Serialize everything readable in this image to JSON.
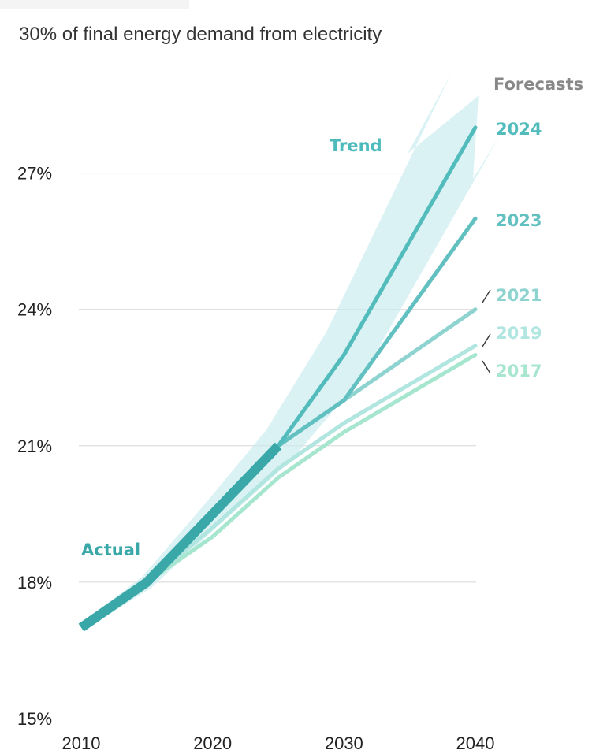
{
  "chart_data": {
    "type": "line",
    "title": "30% of final energy demand from electricity",
    "xlabel": "",
    "ylabel": "",
    "xlim": [
      2010,
      2040
    ],
    "ylim": [
      15,
      30
    ],
    "x_ticks": [
      "2010",
      "2020",
      "2030",
      "2040"
    ],
    "y_ticks": [
      "15%",
      "18%",
      "21%",
      "24%",
      "27%"
    ],
    "y_tick_values": [
      15,
      18,
      21,
      24,
      27
    ],
    "x_tick_values": [
      2010,
      2020,
      2030,
      2040
    ],
    "grid": true,
    "annotations": {
      "forecasts_heading": "Forecasts",
      "actual": "Actual",
      "trend": "Trend"
    },
    "actual": {
      "name": "Actual",
      "x": [
        2010,
        2015,
        2020,
        2025
      ],
      "y": [
        17.0,
        18.0,
        19.5,
        21.0
      ]
    },
    "series": [
      {
        "name": "2024",
        "color": "#52bcbc",
        "x": [
          2025,
          2030,
          2040
        ],
        "y": [
          21.0,
          23.0,
          28.0
        ]
      },
      {
        "name": "2023",
        "color": "#62c0c0",
        "x": [
          2025,
          2030,
          2040
        ],
        "y": [
          21.0,
          22.0,
          26.0
        ]
      },
      {
        "name": "2021",
        "color": "#8ed3d0",
        "x": [
          2025,
          2030,
          2040
        ],
        "y": [
          21.0,
          22.0,
          24.0
        ]
      },
      {
        "name": "2019",
        "color": "#b0e5e0",
        "x": [
          2015,
          2020,
          2025,
          2030,
          2040
        ],
        "y": [
          18.0,
          19.2,
          20.5,
          21.5,
          23.2
        ]
      },
      {
        "name": "2017",
        "color": "#a6e6cf",
        "x": [
          2015,
          2020,
          2025,
          2030,
          2040
        ],
        "y": [
          18.0,
          19.0,
          20.3,
          21.3,
          23.0
        ]
      }
    ],
    "trend_arrow": {
      "x": [
        2010,
        2015,
        2020,
        2025,
        2030,
        2040
      ],
      "y": [
        17.0,
        18.0,
        19.5,
        21.0,
        23.0,
        28.5
      ]
    }
  }
}
